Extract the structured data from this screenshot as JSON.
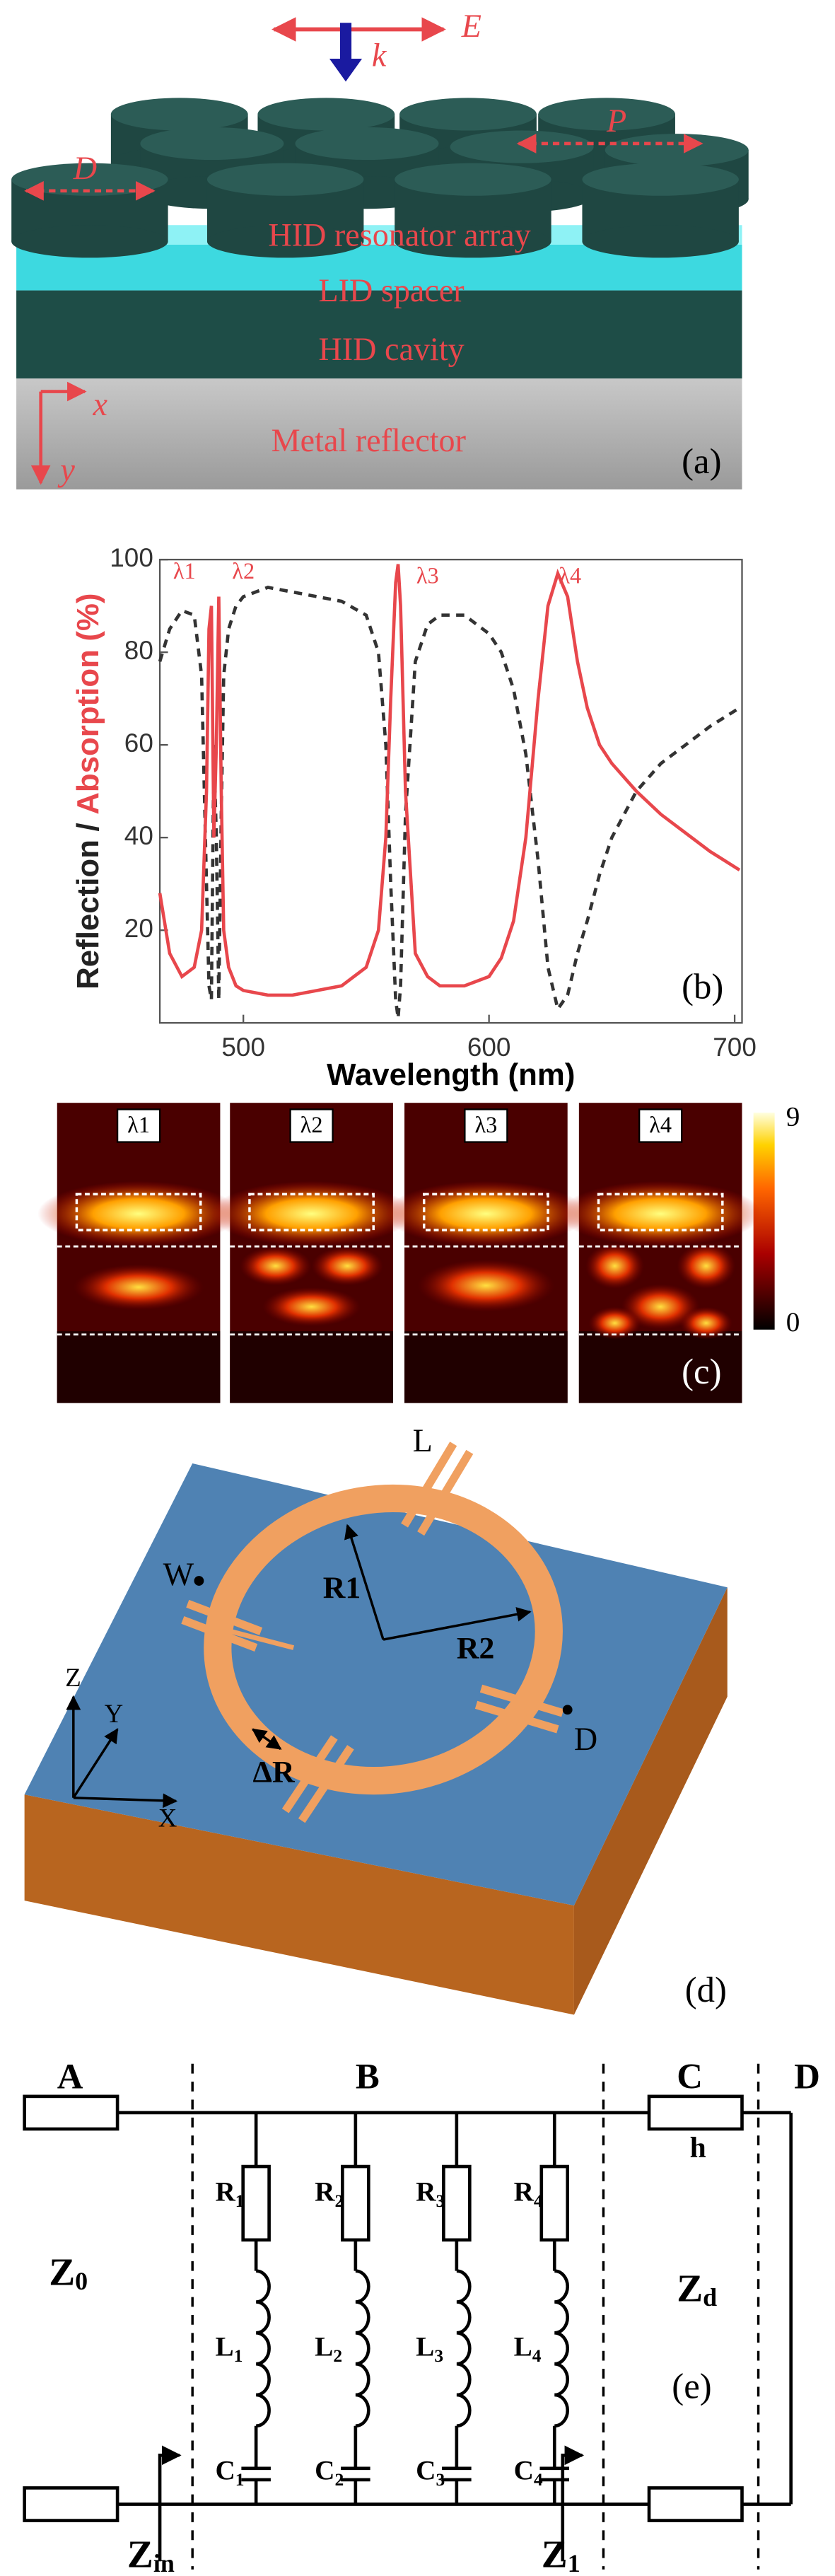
{
  "panel_a": {
    "field_label": "E",
    "wave_label": "k",
    "diameter_label": "D",
    "period_label": "P",
    "layers": [
      "HID resonator array",
      "LID spacer",
      "HID cavity",
      "Metal reflector"
    ],
    "axis_x": "x",
    "axis_y": "y",
    "tag": "(a)"
  },
  "chart_data": {
    "type": "line",
    "xlabel": "Wavelength (nm)",
    "ylabel_separator": "/",
    "ylabel_unit": "(%)",
    "x": [
      466,
      470,
      475,
      480,
      483,
      485,
      486,
      487,
      488,
      489,
      490,
      491,
      492,
      494,
      497,
      500,
      510,
      520,
      530,
      540,
      550,
      555,
      558,
      560,
      562,
      563,
      564,
      566,
      570,
      575,
      580,
      590,
      600,
      605,
      610,
      615,
      620,
      624,
      628,
      632,
      636,
      640,
      645,
      650,
      660,
      670,
      680,
      690,
      702
    ],
    "series": [
      {
        "name": "Reflection",
        "color": "#333333",
        "dash": true,
        "values": [
          78,
          85,
          89,
          88,
          75,
          30,
          8,
          5,
          60,
          40,
          5,
          45,
          75,
          85,
          90,
          92,
          94,
          93,
          92,
          91,
          88,
          80,
          60,
          30,
          5,
          1,
          8,
          45,
          78,
          86,
          88,
          88,
          84,
          80,
          72,
          58,
          35,
          12,
          3,
          6,
          15,
          22,
          32,
          40,
          50,
          56,
          60,
          64,
          68
        ]
      },
      {
        "name": "Absorption",
        "color": "#e8474c",
        "dash": false,
        "values": [
          28,
          15,
          10,
          12,
          20,
          50,
          85,
          90,
          40,
          60,
          92,
          50,
          20,
          12,
          8,
          7,
          6,
          6,
          7,
          8,
          12,
          20,
          40,
          70,
          95,
          99,
          90,
          50,
          15,
          10,
          8,
          8,
          10,
          14,
          22,
          40,
          70,
          90,
          97,
          92,
          78,
          68,
          60,
          56,
          50,
          45,
          41,
          37,
          33
        ]
      }
    ],
    "xlim": [
      466,
      703
    ],
    "ylim": [
      0,
      100
    ],
    "xticks": [
      500,
      600,
      700
    ],
    "yticks": [
      20,
      40,
      60,
      80,
      100
    ],
    "annotations": [
      {
        "text": "λ1",
        "x": 476,
        "y": 97
      },
      {
        "text": "λ2",
        "x": 500,
        "y": 97
      },
      {
        "text": "λ3",
        "x": 575,
        "y": 96
      },
      {
        "text": "λ4",
        "x": 633,
        "y": 96
      }
    ],
    "tag": "(b)"
  },
  "panel_c": {
    "labels": [
      "λ1",
      "λ2",
      "λ3",
      "λ4"
    ],
    "colorbar_max": 9,
    "colorbar_min": 0,
    "tag": "(c)"
  },
  "panel_d": {
    "labels": {
      "L": "L",
      "W": "W",
      "R1": "R1",
      "R2": "R2",
      "dR": "ΔR",
      "D": "D",
      "Z": "Z",
      "Y": "Y",
      "X": "X"
    },
    "tag": "(d)"
  },
  "panel_e": {
    "nodes": [
      "A",
      "B",
      "C",
      "D"
    ],
    "h": "h",
    "z0": {
      "base": "Z",
      "sub": "0"
    },
    "zd": {
      "base": "Z",
      "sub": "d"
    },
    "zin": {
      "base": "Z",
      "sub": "in"
    },
    "z1": {
      "base": "Z",
      "sub": "1"
    },
    "resistors": [
      {
        "base": "R",
        "sub": "1"
      },
      {
        "base": "R",
        "sub": "2"
      },
      {
        "base": "R",
        "sub": "3"
      },
      {
        "base": "R",
        "sub": "4"
      }
    ],
    "inductors": [
      {
        "base": "L",
        "sub": "1"
      },
      {
        "base": "L",
        "sub": "2"
      },
      {
        "base": "L",
        "sub": "3"
      },
      {
        "base": "L",
        "sub": "4"
      }
    ],
    "capacitors": [
      {
        "base": "C",
        "sub": "1"
      },
      {
        "base": "C",
        "sub": "2"
      },
      {
        "base": "C",
        "sub": "3"
      },
      {
        "base": "C",
        "sub": "4"
      }
    ],
    "tag": "(e)"
  }
}
